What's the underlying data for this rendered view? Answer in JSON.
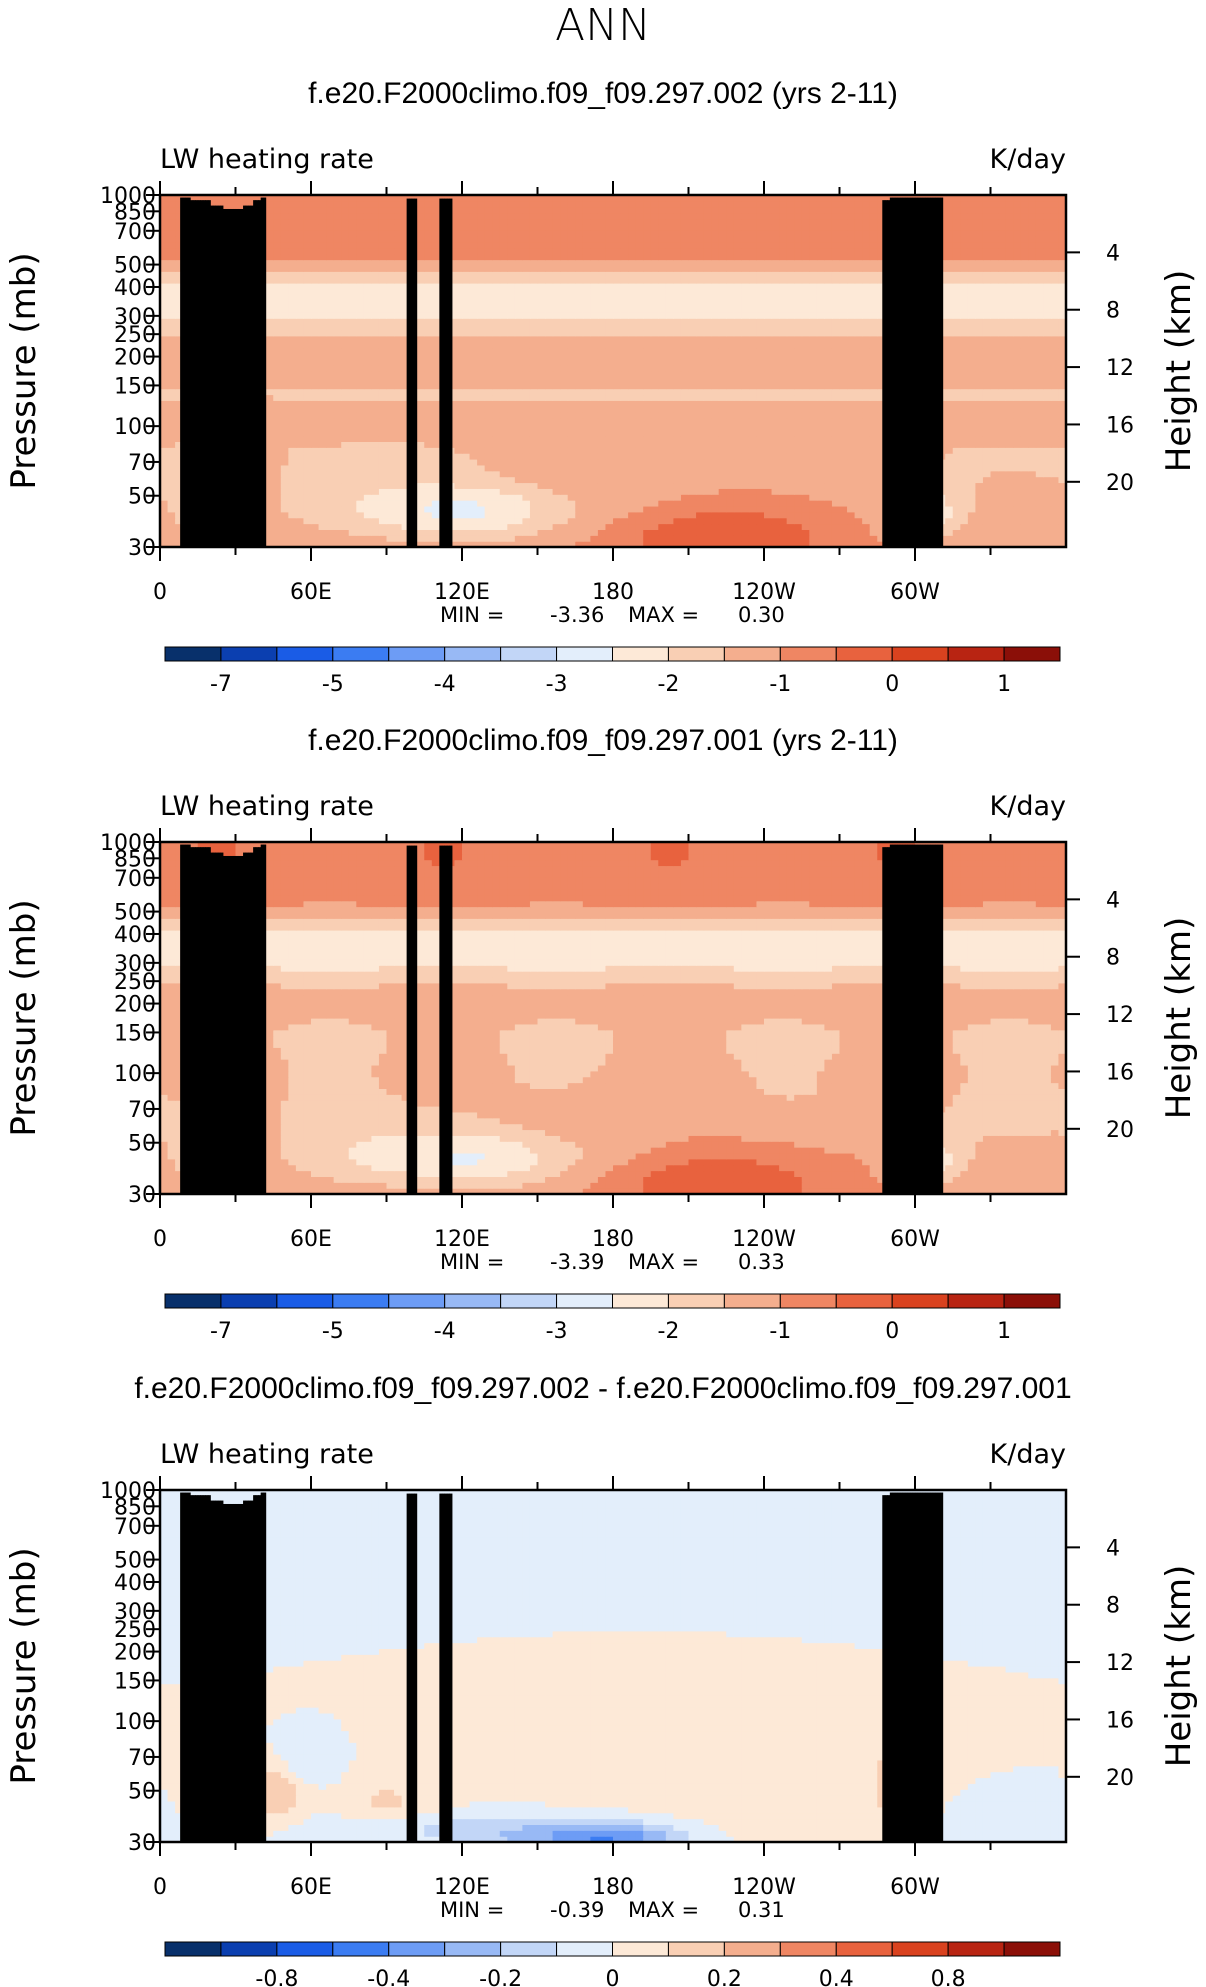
{
  "page_title": "ANN",
  "panels": [
    {
      "title": "f.e20.F2000climo.f09_f09.297.002 (yrs 2-11)",
      "left_label": "LW heating rate",
      "right_label": "K/day",
      "stats": {
        "min_label": "MIN =",
        "min": "-3.36",
        "max_label": "MAX =",
        "max": "0.30"
      },
      "colorbar_labels": [
        "-7",
        "-5",
        "-4",
        "-3",
        "-2",
        "-1",
        "0",
        "1"
      ]
    },
    {
      "title": "f.e20.F2000climo.f09_f09.297.001 (yrs 2-11)",
      "left_label": "LW heating rate",
      "right_label": "K/day",
      "stats": {
        "min_label": "MIN =",
        "min": "-3.39",
        "max_label": "MAX =",
        "max": "0.33"
      },
      "colorbar_labels": [
        "-7",
        "-5",
        "-4",
        "-3",
        "-2",
        "-1",
        "0",
        "1"
      ]
    },
    {
      "title": "f.e20.F2000climo.f09_f09.297.002 - f.e20.F2000climo.f09_f09.297.001",
      "left_label": "LW heating rate",
      "right_label": "K/day",
      "stats": {
        "min_label": "MIN =",
        "min": "-0.39",
        "max_label": "MAX =",
        "max": "0.31"
      },
      "colorbar_labels": [
        "-0.8",
        "-0.4",
        "-0.2",
        "0",
        "0.2",
        "0.4",
        "0.8"
      ]
    }
  ],
  "axes": {
    "ylabel_left": "Pressure (mb)",
    "ylabel_right": "Height (km)",
    "x_ticks": [
      "0",
      "60E",
      "120E",
      "180",
      "120W",
      "60W"
    ],
    "pressure_ticks": [
      "30",
      "50",
      "70",
      "100",
      "150",
      "200",
      "250",
      "300",
      "400",
      "500",
      "700",
      "850",
      "1000"
    ],
    "height_ticks": [
      "20",
      "16",
      "12",
      "8",
      "4"
    ]
  },
  "colors": {
    "full_field_palette": [
      "#08306b",
      "#0b3fb0",
      "#1a5ce6",
      "#3b7cf2",
      "#6d9cf5",
      "#98b9f5",
      "#c2d6f7",
      "#e3eefb",
      "#fde9d7",
      "#f9cfb4",
      "#f4ae8e",
      "#ef8663",
      "#e8623e",
      "#d9421f",
      "#b82412",
      "#8b0f08"
    ],
    "difference_palette": [
      "#08306b",
      "#0b3fb0",
      "#1a5ce6",
      "#3b7cf2",
      "#6d9cf5",
      "#98b9f5",
      "#c2d6f7",
      "#e3eefb",
      "#fde9d7",
      "#f9cfb4",
      "#f4ae8e",
      "#ef8663",
      "#e8623e",
      "#d9421f",
      "#b82412",
      "#8b0f08"
    ],
    "topography": "#000000"
  },
  "chart_data": [
    {
      "type": "heatmap",
      "title": "f.e20.F2000climo.f09_f09.297.002 (yrs 2-11)",
      "field": "LW heating rate",
      "units": "K/day",
      "xlabel": "",
      "ylabel": "Pressure (mb)",
      "y2label": "Height (km)",
      "x_ticks": [
        "0",
        "60E",
        "120E",
        "180",
        "120W",
        "60W"
      ],
      "xlim_deg_east": [
        0,
        360
      ],
      "ylim_mb": [
        1000,
        30
      ],
      "y_scale": "log",
      "contour_levels": [
        -7,
        -6,
        -5,
        -4.5,
        -4,
        -3.5,
        -3,
        -2.5,
        -2,
        -1.5,
        -1,
        -0.5,
        0,
        0.5,
        1
      ],
      "min": -3.36,
      "max": 0.3
    },
    {
      "type": "heatmap",
      "title": "f.e20.F2000climo.f09_f09.297.001 (yrs 2-11)",
      "field": "LW heating rate",
      "units": "K/day",
      "xlabel": "",
      "ylabel": "Pressure (mb)",
      "y2label": "Height (km)",
      "x_ticks": [
        "0",
        "60E",
        "120E",
        "180",
        "120W",
        "60W"
      ],
      "xlim_deg_east": [
        0,
        360
      ],
      "ylim_mb": [
        1000,
        30
      ],
      "y_scale": "log",
      "contour_levels": [
        -7,
        -6,
        -5,
        -4.5,
        -4,
        -3.5,
        -3,
        -2.5,
        -2,
        -1.5,
        -1,
        -0.5,
        0,
        0.5,
        1
      ],
      "min": -3.39,
      "max": 0.33
    },
    {
      "type": "heatmap",
      "title": "f.e20.F2000climo.f09_f09.297.002 - f.e20.F2000climo.f09_f09.297.001",
      "field": "LW heating rate",
      "units": "K/day",
      "xlabel": "",
      "ylabel": "Pressure (mb)",
      "y2label": "Height (km)",
      "x_ticks": [
        "0",
        "60E",
        "120E",
        "180",
        "120W",
        "60W"
      ],
      "xlim_deg_east": [
        0,
        360
      ],
      "ylim_mb": [
        1000,
        30
      ],
      "y_scale": "log",
      "contour_levels": [
        -1,
        -0.8,
        -0.6,
        -0.4,
        -0.3,
        -0.2,
        -0.1,
        0,
        0.1,
        0.2,
        0.3,
        0.4,
        0.6,
        0.8,
        1
      ],
      "min": -0.39,
      "max": 0.31
    }
  ]
}
